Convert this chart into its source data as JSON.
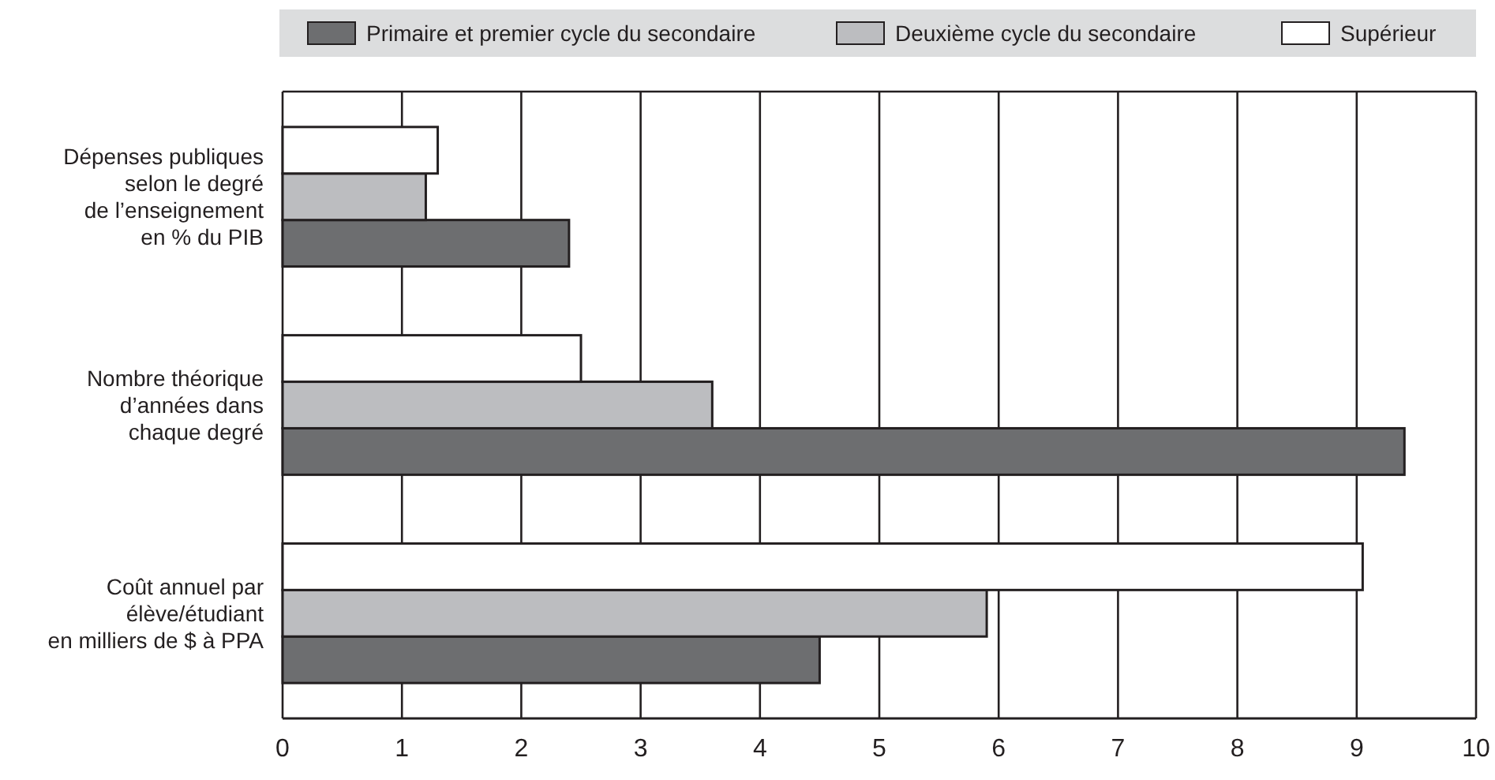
{
  "chart_data": {
    "type": "bar",
    "orientation": "horizontal",
    "categories": [
      "Dépenses publiques\nselon le degré\nde l’enseignement\nen % du PIB",
      "Nombre théorique\nd’années dans\nchaque degré",
      "Coût annuel par\nélève/étudiant\nen milliers de $ à PPA"
    ],
    "series": [
      {
        "name": "Primaire et premier cycle du secondaire",
        "color": "#6d6e70",
        "values": [
          2.4,
          9.4,
          4.5
        ]
      },
      {
        "name": "Deuxième cycle du secondaire",
        "color": "#bcbdc0",
        "values": [
          1.2,
          3.6,
          5.9
        ]
      },
      {
        "name": "Supérieur",
        "color": "#ffffff",
        "values": [
          1.3,
          2.5,
          9.05
        ]
      }
    ],
    "xlim": [
      0,
      10
    ],
    "xticks": [
      0,
      1,
      2,
      3,
      4,
      5,
      6,
      7,
      8,
      9,
      10
    ],
    "grid": "x",
    "legend": "top"
  }
}
